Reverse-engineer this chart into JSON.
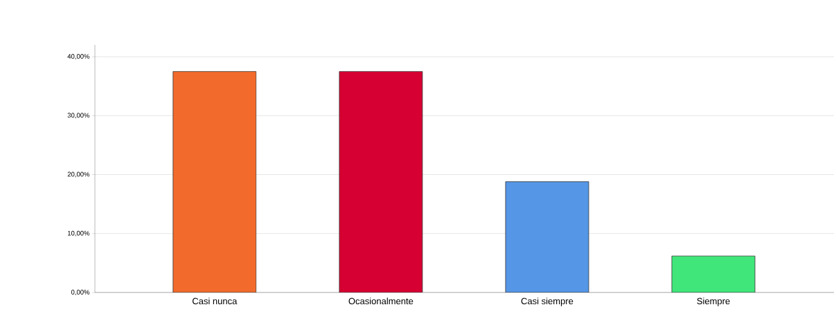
{
  "chart_data": {
    "type": "bar",
    "categories": [
      "Casi nunca",
      "Ocasionalmente",
      "Casi siempre",
      "Siempre"
    ],
    "values": [
      37.5,
      37.5,
      18.8,
      6.2
    ],
    "colors": [
      "#f26b2c",
      "#d60032",
      "#5596e6",
      "#40e67a"
    ],
    "ylim": [
      0,
      42
    ],
    "yticks": [
      {
        "value": 0,
        "label": "0,00%"
      },
      {
        "value": 10,
        "label": "10,00%"
      },
      {
        "value": 20,
        "label": "20,00%"
      },
      {
        "value": 30,
        "label": "30,00%"
      },
      {
        "value": 40,
        "label": "40,00%"
      }
    ],
    "grid": "y"
  }
}
